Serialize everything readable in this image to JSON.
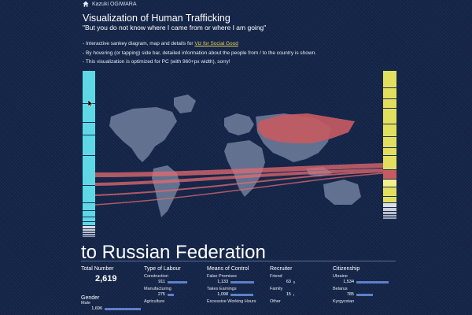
{
  "header": {
    "author": "Kazuki OGIWARA",
    "title": "Visualization of Human Trafficking",
    "subtitle": "\"But you do not know where I came from or where I am going\""
  },
  "bullets": {
    "b1_prefix": "- Interactive sankey diagram, map and details for ",
    "b1_link": "Viz for Social Good",
    "b2": "- By hovering (or tapping) side bar, detailed information about the people from / to the country is shown.",
    "b3": "- This visualization is optimized for PC (with 960+px width), sorry!"
  },
  "colors": {
    "background": "#14254a",
    "left_bar": "#5fd8e6",
    "right_bar": "#e2df5e",
    "selected_country": "#c45a62",
    "flow": "#e46a6f",
    "land": "#6a7a98",
    "bar_fill": "#5f7fc8"
  },
  "detail": {
    "heading": "to Russian Federation",
    "total": {
      "label": "Total Number",
      "value": "2,619"
    },
    "gender": {
      "label": "Gender",
      "rows": [
        {
          "label": "Male",
          "value": "1,696",
          "ratio": 0.65
        }
      ]
    },
    "labour": {
      "label": "Type of Labour",
      "rows": [
        {
          "label": "Construction",
          "value": "911",
          "ratio": 0.35
        },
        {
          "label": "Manufacturing",
          "value": "275",
          "ratio": 0.11
        },
        {
          "label": "Agriculture",
          "value": "",
          "ratio": 0.0
        }
      ]
    },
    "control": {
      "label": "Means of Control",
      "rows": [
        {
          "label": "False Promises",
          "value": "1,133",
          "ratio": 0.43
        },
        {
          "label": "Takes Earnings",
          "value": "1,098",
          "ratio": 0.42
        },
        {
          "label": "Excessive Working Hours",
          "value": "",
          "ratio": 0.0
        }
      ]
    },
    "recruiter": {
      "label": "Recruiter",
      "rows": [
        {
          "label": "Friend",
          "value": "63",
          "ratio": 0.03
        },
        {
          "label": "Family",
          "value": "15",
          "ratio": 0.01
        },
        {
          "label": "Other",
          "value": "",
          "ratio": 0.0
        }
      ]
    },
    "citizenship": {
      "label": "Citizenship",
      "rows": [
        {
          "label": "Ukraine",
          "value": "1,534",
          "ratio": 0.59
        },
        {
          "label": "Belarus",
          "value": "785",
          "ratio": 0.3
        },
        {
          "label": "Kyrgyzstan",
          "value": "",
          "ratio": 0.0
        }
      ]
    }
  }
}
